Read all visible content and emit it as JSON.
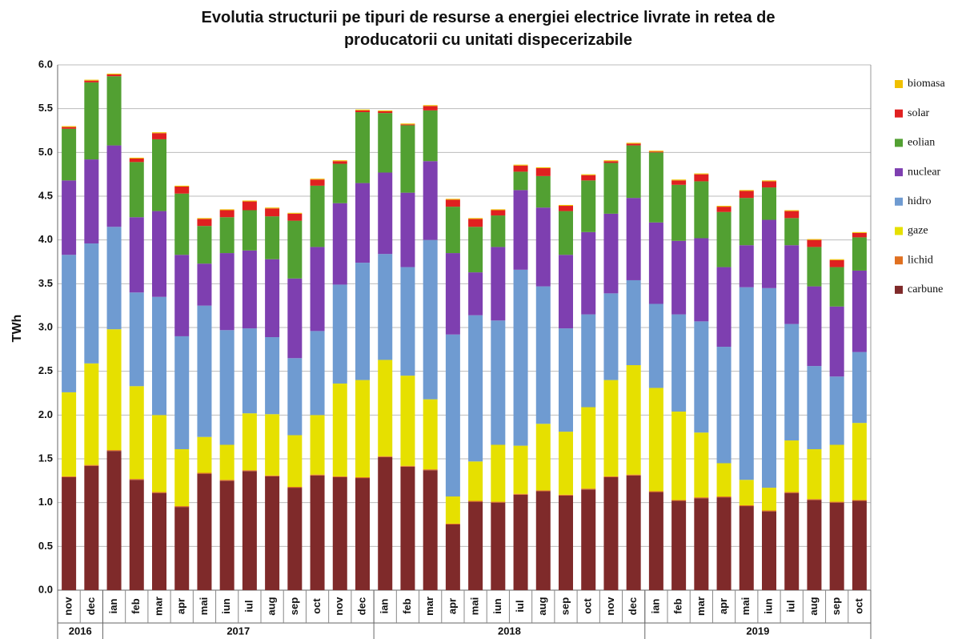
{
  "chart_data": {
    "type": "stacked_bar",
    "title": "Evolutia structurii pe tipuri de resurse a energiei electrice livrate in retea de producatorii cu unitati dispecerizabile",
    "y_label": "TWh",
    "categories": [
      "nov",
      "dec",
      "ian",
      "feb",
      "mar",
      "apr",
      "mai",
      "iun",
      "iul",
      "aug",
      "sep",
      "oct",
      "nov",
      "dec",
      "ian",
      "feb",
      "mar",
      "apr",
      "mai",
      "iun",
      "iul",
      "aug",
      "sep",
      "oct",
      "nov",
      "dec",
      "ian",
      "feb",
      "mar",
      "apr",
      "mai",
      "iun",
      "iul",
      "aug",
      "sep",
      "oct"
    ],
    "groups": [
      "2016",
      null,
      "2017",
      null,
      null,
      null,
      null,
      null,
      null,
      null,
      null,
      null,
      null,
      null,
      "2018",
      null,
      null,
      null,
      null,
      null,
      null,
      null,
      null,
      null,
      null,
      null,
      "2019",
      null,
      null,
      null,
      null,
      null,
      null,
      null,
      null,
      null
    ],
    "ylim": [
      0,
      6
    ],
    "yticks": [
      {
        "value": 0,
        "label": "0.0"
      },
      {
        "value": 0.5,
        "label": "0.5"
      },
      {
        "value": 1,
        "label": "1.0"
      },
      {
        "value": 1.5,
        "label": "1.5"
      },
      {
        "value": 2,
        "label": "2.0"
      },
      {
        "value": 2.5,
        "label": "2.5"
      },
      {
        "value": 3,
        "label": "3.0"
      },
      {
        "value": 3.5,
        "label": "3.5"
      },
      {
        "value": 4,
        "label": "4.0"
      },
      {
        "value": 4.5,
        "label": "4.5"
      },
      {
        "value": 5,
        "label": "5.0"
      },
      {
        "value": 5.5,
        "label": "5.5"
      },
      {
        "value": 6,
        "label": "6.0"
      }
    ],
    "grid": true,
    "legend": "right",
    "series": [
      {
        "name": "carbune",
        "color": "#7f2a2a",
        "values": [
          1.29,
          1.42,
          1.59,
          1.26,
          1.11,
          0.95,
          1.33,
          1.25,
          1.36,
          1.3,
          1.17,
          1.31,
          1.29,
          1.28,
          1.52,
          1.41,
          1.37,
          0.75,
          1.01,
          1.0,
          1.09,
          1.13,
          1.08,
          1.15,
          1.29,
          1.31,
          1.12,
          1.02,
          1.05,
          1.06,
          0.96,
          0.9,
          1.11,
          1.03,
          1.0,
          1.02
        ]
      },
      {
        "name": "lichid",
        "color": "#e07020",
        "values": [
          0.01,
          0.01,
          0.01,
          0.01,
          0.01,
          0.01,
          0.01,
          0.01,
          0.01,
          0.01,
          0.01,
          0.01,
          0.01,
          0.01,
          0.01,
          0.01,
          0.01,
          0.01,
          0.01,
          0.01,
          0.01,
          0.01,
          0.01,
          0.01,
          0.01,
          0.01,
          0.01,
          0.01,
          0.01,
          0.01,
          0.01,
          0.01,
          0.01,
          0.01,
          0.01,
          0.01
        ]
      },
      {
        "name": "gaze",
        "color": "#e6e000",
        "values": [
          0.96,
          1.16,
          1.38,
          1.06,
          0.88,
          0.65,
          0.41,
          0.4,
          0.65,
          0.7,
          0.59,
          0.68,
          1.06,
          1.11,
          1.1,
          1.03,
          0.8,
          0.31,
          0.45,
          0.65,
          0.55,
          0.76,
          0.72,
          0.93,
          1.1,
          1.25,
          1.18,
          1.01,
          0.74,
          0.38,
          0.29,
          0.26,
          0.59,
          0.57,
          0.65,
          0.88
        ]
      },
      {
        "name": "hidro",
        "color": "#6f9bd1",
        "values": [
          1.57,
          1.37,
          1.17,
          1.07,
          1.35,
          1.29,
          1.5,
          1.31,
          0.97,
          0.88,
          0.88,
          0.96,
          1.13,
          1.34,
          1.21,
          1.24,
          1.82,
          1.85,
          1.67,
          1.42,
          2.01,
          1.57,
          1.18,
          1.06,
          0.99,
          0.97,
          0.96,
          1.11,
          1.27,
          1.33,
          2.2,
          2.28,
          1.33,
          0.95,
          0.78,
          0.81
        ]
      },
      {
        "name": "nuclear",
        "color": "#7e3fb0",
        "values": [
          0.85,
          0.96,
          0.93,
          0.86,
          0.98,
          0.93,
          0.48,
          0.88,
          0.89,
          0.89,
          0.91,
          0.96,
          0.93,
          0.91,
          0.93,
          0.85,
          0.9,
          0.93,
          0.49,
          0.84,
          0.91,
          0.9,
          0.84,
          0.94,
          0.91,
          0.94,
          0.93,
          0.84,
          0.95,
          0.91,
          0.48,
          0.78,
          0.9,
          0.91,
          0.8,
          0.93
        ]
      },
      {
        "name": "eolian",
        "color": "#52a032",
        "values": [
          0.59,
          0.88,
          0.79,
          0.63,
          0.82,
          0.7,
          0.43,
          0.41,
          0.46,
          0.49,
          0.66,
          0.7,
          0.45,
          0.81,
          0.68,
          0.77,
          0.58,
          0.53,
          0.52,
          0.36,
          0.21,
          0.36,
          0.5,
          0.59,
          0.58,
          0.6,
          0.8,
          0.64,
          0.65,
          0.63,
          0.54,
          0.37,
          0.31,
          0.45,
          0.45,
          0.38
        ]
      },
      {
        "name": "solar",
        "color": "#e02020",
        "values": [
          0.02,
          0.02,
          0.02,
          0.04,
          0.07,
          0.08,
          0.08,
          0.08,
          0.1,
          0.09,
          0.08,
          0.07,
          0.03,
          0.02,
          0.02,
          0.01,
          0.05,
          0.08,
          0.09,
          0.06,
          0.07,
          0.09,
          0.06,
          0.06,
          0.02,
          0.02,
          0.01,
          0.05,
          0.08,
          0.06,
          0.08,
          0.07,
          0.08,
          0.08,
          0.08,
          0.05
        ]
      },
      {
        "name": "biomasa",
        "color": "#f0c000",
        "values": [
          0.01,
          0.01,
          0.01,
          0.01,
          0.01,
          0.01,
          0.01,
          0.01,
          0.01,
          0.01,
          0.01,
          0.01,
          0.01,
          0.01,
          0.01,
          0.01,
          0.01,
          0.01,
          0.01,
          0.01,
          0.01,
          0.01,
          0.01,
          0.01,
          0.01,
          0.01,
          0.01,
          0.01,
          0.01,
          0.01,
          0.01,
          0.01,
          0.01,
          0.01,
          0.01,
          0.01
        ]
      }
    ]
  }
}
